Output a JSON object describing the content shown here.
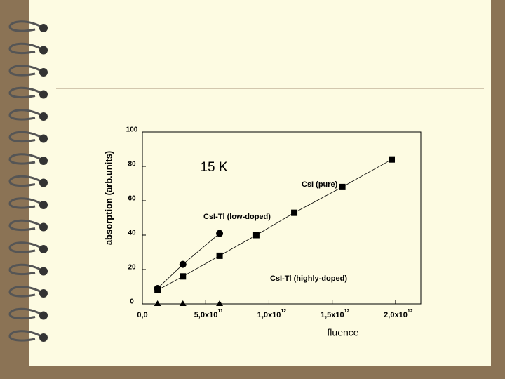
{
  "chart_data": {
    "type": "line",
    "annotations": [
      "15 K"
    ],
    "x_label": "fluence",
    "y_label": "absorption (arb.units)",
    "xlim": [
      0,
      2200000000000
    ],
    "ylim": [
      0,
      100
    ],
    "xticks": [
      {
        "value": 0,
        "label": "0,0"
      },
      {
        "value": 500000000000,
        "label": "5,0x10",
        "superscript": "11"
      },
      {
        "value": 1000000000000,
        "label": "1,0x10",
        "superscript": "12"
      },
      {
        "value": 1500000000000,
        "label": "1,5x10",
        "superscript": "12"
      },
      {
        "value": 2000000000000,
        "label": "2,0x10",
        "superscript": "12"
      }
    ],
    "yticks": [
      0,
      20,
      40,
      60,
      80,
      100
    ],
    "series": [
      {
        "name": "CsI (pure)",
        "marker": "square",
        "color": "#000000",
        "x": [
          120000000000,
          320000000000,
          610000000000,
          900000000000,
          1200000000000,
          1580000000000,
          1970000000000
        ],
        "values": [
          8,
          16,
          28,
          40,
          53,
          68,
          84
        ]
      },
      {
        "name": "CsI-Tl (low-doped)",
        "marker": "circle",
        "color": "#000000",
        "x": [
          120000000000,
          320000000000,
          610000000000
        ],
        "values": [
          9,
          23,
          41
        ]
      },
      {
        "name": "CsI-Tl (highly-doped)",
        "marker": "triangle",
        "color": "#000000",
        "x": [
          120000000000,
          320000000000,
          610000000000
        ],
        "values": [
          0,
          0,
          0
        ]
      }
    ]
  }
}
